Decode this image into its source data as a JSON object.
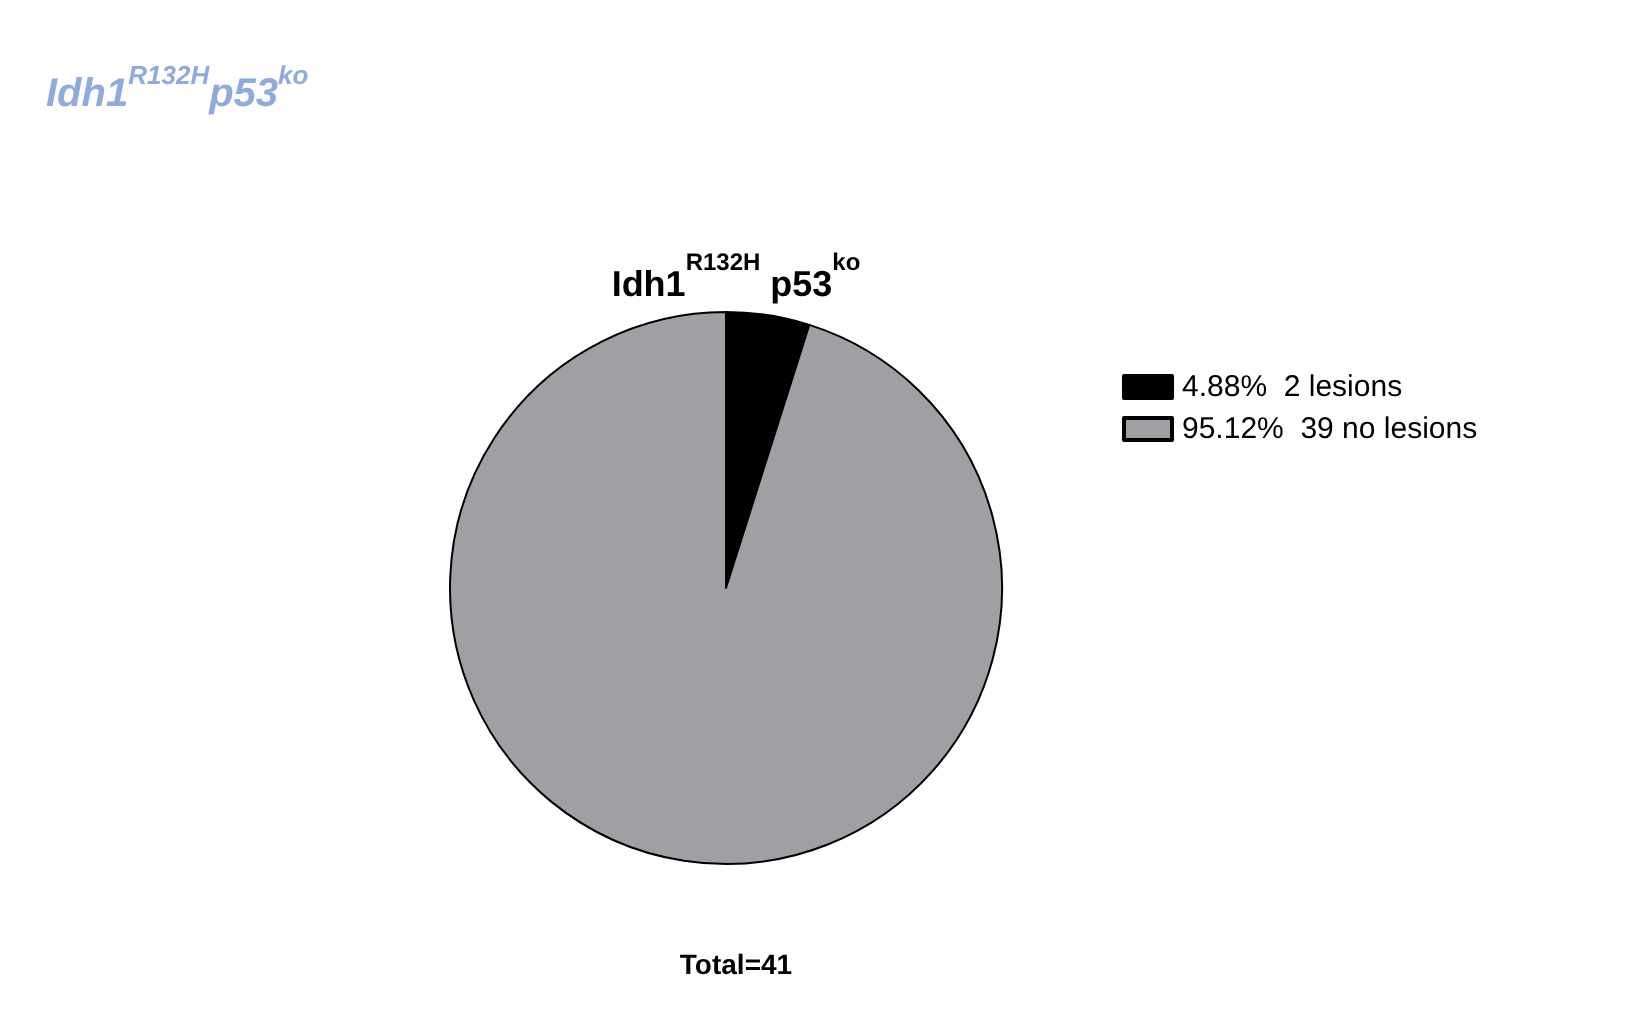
{
  "chart_data": {
    "type": "pie",
    "title": "Idh1$^{R132H}$p53$^{ko}$",
    "subtitle": "Idh1$^{R132H}$ p53$^{ko}$",
    "categories": [
      "4.88%  2 lesions",
      "95.12%  39 no lesions"
    ],
    "values": [
      4.88,
      95.12
    ],
    "colors": [
      "#000000",
      "#a0a0a4"
    ],
    "legend": "top right",
    "annotations": [
      "Total=41"
    ]
  }
}
